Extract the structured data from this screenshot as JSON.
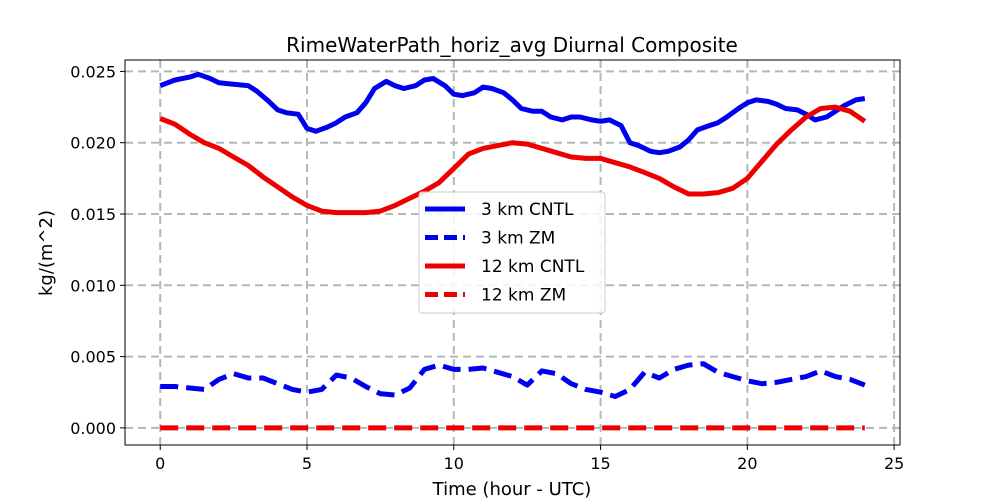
{
  "chart_data": {
    "type": "line",
    "title": "RimeWaterPath_horiz_avg Diurnal Composite",
    "xlabel": "Time (hour - UTC)",
    "ylabel": "kg/(m^2)",
    "xlim": [
      -1.2,
      25.2
    ],
    "ylim": [
      -0.0012,
      0.0258
    ],
    "xticks": [
      0,
      5,
      10,
      15,
      20,
      25
    ],
    "xtick_labels": [
      "0",
      "5",
      "10",
      "15",
      "20",
      "25"
    ],
    "yticks": [
      0.0,
      0.005,
      0.01,
      0.015,
      0.02,
      0.025
    ],
    "ytick_labels": [
      "0.000",
      "0.005",
      "0.010",
      "0.015",
      "0.020",
      "0.025"
    ],
    "grid": true,
    "legend_position": "center",
    "series": [
      {
        "name": "3 km CNTL",
        "color": "#0000ee",
        "dash": "solid",
        "x": [
          0,
          0.5,
          1,
          1.3,
          1.7,
          2,
          2.5,
          3,
          3.3,
          3.7,
          4,
          4.3,
          4.7,
          5,
          5.3,
          5.7,
          6,
          6.3,
          6.7,
          7,
          7.3,
          7.7,
          8,
          8.3,
          8.7,
          9,
          9.3,
          9.7,
          10,
          10.3,
          10.7,
          11,
          11.3,
          11.7,
          12,
          12.3,
          12.7,
          13,
          13.3,
          13.7,
          14,
          14.3,
          14.7,
          15,
          15.3,
          15.7,
          16,
          16.3,
          16.7,
          17,
          17.3,
          17.7,
          18,
          18.3,
          18.7,
          19,
          19.3,
          19.7,
          20,
          20.3,
          20.7,
          21,
          21.3,
          21.7,
          22,
          22.3,
          22.7,
          23,
          23.3,
          23.7,
          24
        ],
        "y": [
          0.024,
          0.0244,
          0.0246,
          0.0248,
          0.0245,
          0.0242,
          0.0241,
          0.024,
          0.0236,
          0.0229,
          0.0223,
          0.0221,
          0.022,
          0.021,
          0.0208,
          0.0211,
          0.0214,
          0.0218,
          0.0221,
          0.0228,
          0.0238,
          0.0243,
          0.024,
          0.0238,
          0.024,
          0.0244,
          0.0245,
          0.024,
          0.0234,
          0.0233,
          0.0235,
          0.0239,
          0.0238,
          0.0235,
          0.023,
          0.0224,
          0.0222,
          0.0222,
          0.0218,
          0.0216,
          0.0218,
          0.0218,
          0.0216,
          0.0215,
          0.0216,
          0.0212,
          0.02,
          0.0198,
          0.0194,
          0.0193,
          0.0194,
          0.0197,
          0.0202,
          0.0209,
          0.0212,
          0.0214,
          0.0218,
          0.0224,
          0.0228,
          0.023,
          0.0229,
          0.0227,
          0.0224,
          0.0223,
          0.022,
          0.0216,
          0.0218,
          0.0222,
          0.0226,
          0.023,
          0.0231
        ]
      },
      {
        "name": "3 km ZM",
        "color": "#0000ee",
        "dash": "dashed",
        "x": [
          0,
          0.5,
          1,
          1.5,
          2,
          2.5,
          3,
          3.5,
          4,
          4.5,
          5,
          5.5,
          6,
          6.5,
          7,
          7.5,
          8,
          8.5,
          9,
          9.5,
          10,
          10.5,
          11,
          11.5,
          12,
          12.5,
          13,
          13.5,
          14,
          14.5,
          15,
          15.5,
          16,
          16.5,
          17,
          17.5,
          18,
          18.5,
          19,
          19.5,
          20,
          20.5,
          21,
          21.5,
          22,
          22.5,
          23,
          23.5,
          24
        ],
        "y": [
          0.0029,
          0.0029,
          0.0028,
          0.0027,
          0.0034,
          0.0038,
          0.0035,
          0.0035,
          0.0031,
          0.0027,
          0.0025,
          0.0027,
          0.0037,
          0.0035,
          0.0029,
          0.0024,
          0.0023,
          0.0028,
          0.0041,
          0.0044,
          0.0041,
          0.0041,
          0.0042,
          0.0039,
          0.0036,
          0.003,
          0.004,
          0.0038,
          0.0031,
          0.0027,
          0.0025,
          0.0022,
          0.0027,
          0.0039,
          0.0035,
          0.0041,
          0.0044,
          0.0045,
          0.0039,
          0.0036,
          0.0033,
          0.0031,
          0.0032,
          0.0034,
          0.0036,
          0.004,
          0.0036,
          0.0034,
          0.003
        ]
      },
      {
        "name": "12 km CNTL",
        "color": "#ee0000",
        "dash": "solid",
        "x": [
          0,
          0.5,
          1,
          1.5,
          2,
          2.5,
          3,
          3.5,
          4,
          4.5,
          5,
          5.5,
          6,
          6.5,
          7,
          7.5,
          8,
          8.5,
          9,
          9.5,
          10,
          10.5,
          11,
          11.5,
          12,
          12.5,
          13,
          13.5,
          14,
          14.5,
          15,
          15.5,
          16,
          16.5,
          17,
          17.5,
          18,
          18.5,
          19,
          19.5,
          20,
          20.5,
          21,
          21.5,
          22,
          22.5,
          23,
          23.5,
          24
        ],
        "y": [
          0.0217,
          0.0213,
          0.0206,
          0.02,
          0.0196,
          0.019,
          0.0184,
          0.0176,
          0.0169,
          0.0162,
          0.0156,
          0.0152,
          0.0151,
          0.0151,
          0.0151,
          0.0152,
          0.0156,
          0.0161,
          0.0166,
          0.0172,
          0.0182,
          0.0192,
          0.0196,
          0.0198,
          0.02,
          0.0199,
          0.0196,
          0.0193,
          0.019,
          0.0189,
          0.0189,
          0.0186,
          0.0183,
          0.0179,
          0.0175,
          0.0169,
          0.0164,
          0.0164,
          0.0165,
          0.0168,
          0.0175,
          0.0187,
          0.0199,
          0.0209,
          0.0218,
          0.0224,
          0.0225,
          0.0222,
          0.0215
        ]
      },
      {
        "name": "12 km ZM",
        "color": "#ee0000",
        "dash": "dashed",
        "x": [
          0,
          24
        ],
        "y": [
          0.0,
          0.0
        ]
      }
    ]
  }
}
